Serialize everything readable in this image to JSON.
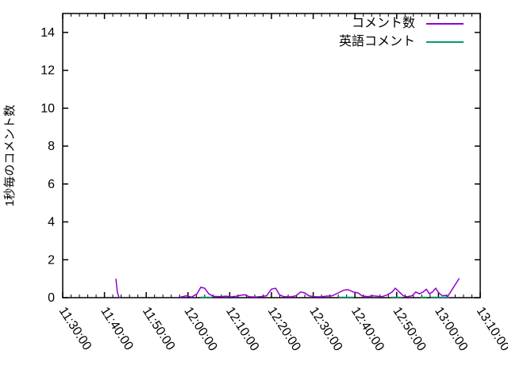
{
  "chart_data": {
    "type": "line",
    "title": "",
    "xlabel": "",
    "ylabel": "1秒毎のコメント数",
    "grid": false,
    "legend_position": "top-right-inside",
    "background": "#ffffff",
    "axis_color": "#000000",
    "ylim": [
      0,
      15
    ],
    "y_ticks": [
      0,
      2,
      4,
      6,
      8,
      10,
      12,
      14
    ],
    "x_start": "11:30:00",
    "x_end": "13:10:00",
    "x_major_ticks": [
      "11:30:00",
      "11:40:00",
      "11:50:00",
      "12:00:00",
      "12:10:00",
      "12:20:00",
      "12:30:00",
      "12:40:00",
      "12:50:00",
      "13:00:00",
      "13:10:00"
    ],
    "x_minor_interval_seconds": 120,
    "series": [
      {
        "name": "コメント数",
        "color": "#9400d3",
        "segments": [
          [
            [
              "11:42:45",
              0.97
            ],
            [
              "11:43:05",
              0.3
            ],
            [
              "11:43:30",
              0.0
            ]
          ],
          [
            [
              "11:58:10",
              0.03
            ],
            [
              "11:59:40",
              0.1
            ],
            [
              "12:00:50",
              0.03
            ],
            [
              "12:02:10",
              0.2
            ],
            [
              "12:03:05",
              0.55
            ],
            [
              "12:04:00",
              0.5
            ],
            [
              "12:05:00",
              0.2
            ],
            [
              "12:06:05",
              0.07
            ],
            [
              "12:07:40",
              0.05
            ],
            [
              "12:09:10",
              0.08
            ],
            [
              "12:10:20",
              0.04
            ],
            [
              "12:11:25",
              0.07
            ],
            [
              "12:12:45",
              0.13
            ],
            [
              "12:13:45",
              0.15
            ],
            [
              "12:14:40",
              0.05
            ],
            [
              "12:16:00",
              0.03
            ],
            [
              "12:17:30",
              0.06
            ],
            [
              "12:18:50",
              0.1
            ],
            [
              "12:20:00",
              0.45
            ],
            [
              "12:21:00",
              0.5
            ],
            [
              "12:21:55",
              0.15
            ],
            [
              "12:23:00",
              0.05
            ],
            [
              "12:24:35",
              0.04
            ],
            [
              "12:25:55",
              0.1
            ],
            [
              "12:27:00",
              0.3
            ],
            [
              "12:28:00",
              0.25
            ],
            [
              "12:28:55",
              0.1
            ],
            [
              "12:30:15",
              0.05
            ],
            [
              "12:31:50",
              0.04
            ],
            [
              "12:33:05",
              0.08
            ],
            [
              "12:34:35",
              0.1
            ],
            [
              "12:36:00",
              0.25
            ],
            [
              "12:37:20",
              0.4
            ],
            [
              "12:38:25",
              0.42
            ],
            [
              "12:39:35",
              0.3
            ],
            [
              "12:40:45",
              0.25
            ],
            [
              "12:41:40",
              0.1
            ],
            [
              "12:43:00",
              0.05
            ],
            [
              "12:44:10",
              0.1
            ],
            [
              "12:45:15",
              0.08
            ],
            [
              "12:46:25",
              0.05
            ],
            [
              "12:47:45",
              0.15
            ],
            [
              "12:48:55",
              0.3
            ],
            [
              "12:49:40",
              0.5
            ],
            [
              "12:50:35",
              0.3
            ],
            [
              "12:51:35",
              0.1
            ],
            [
              "12:52:30",
              0.05
            ],
            [
              "12:53:40",
              0.1
            ],
            [
              "12:54:35",
              0.3
            ],
            [
              "12:55:25",
              0.2
            ],
            [
              "12:56:20",
              0.3
            ],
            [
              "12:57:05",
              0.45
            ],
            [
              "12:57:50",
              0.2
            ],
            [
              "12:58:35",
              0.3
            ],
            [
              "12:59:20",
              0.5
            ],
            [
              "13:00:05",
              0.25
            ],
            [
              "13:00:55",
              0.1
            ],
            [
              "13:01:40",
              0.12
            ],
            [
              "13:02:10",
              0.05
            ],
            [
              "13:04:55",
              1.0
            ]
          ]
        ]
      },
      {
        "name": "英語コメント",
        "color": "#009e73",
        "segments": [
          [
            [
              "12:03:05",
              0.02
            ],
            [
              "12:05:50",
              0.02
            ]
          ],
          [
            [
              "12:36:10",
              0.02
            ],
            [
              "12:39:35",
              0.02
            ]
          ],
          [
            [
              "12:48:40",
              0.02
            ],
            [
              "12:51:00",
              0.02
            ]
          ],
          [
            [
              "12:55:45",
              0.02
            ],
            [
              "12:57:05",
              0.02
            ]
          ],
          [
            [
              "12:58:10",
              0.02
            ],
            [
              "13:02:25",
              0.02
            ]
          ]
        ]
      }
    ]
  },
  "legend": {
    "entries": [
      {
        "label": "コメント数",
        "color": "#9400d3"
      },
      {
        "label": "英語コメント",
        "color": "#009e73"
      }
    ]
  }
}
